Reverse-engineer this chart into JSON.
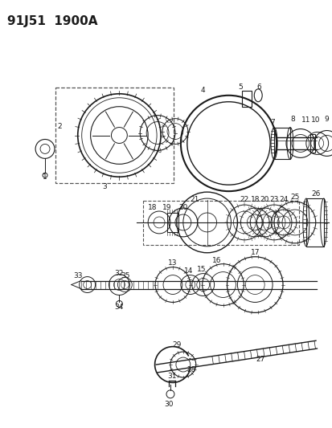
{
  "title": "91J51  1900A",
  "bg_color": "#ffffff",
  "title_fontsize": 11,
  "fig_width": 4.14,
  "fig_height": 5.33,
  "dpi": 100,
  "line_color": "#1a1a1a",
  "dashed_color": "#555555"
}
